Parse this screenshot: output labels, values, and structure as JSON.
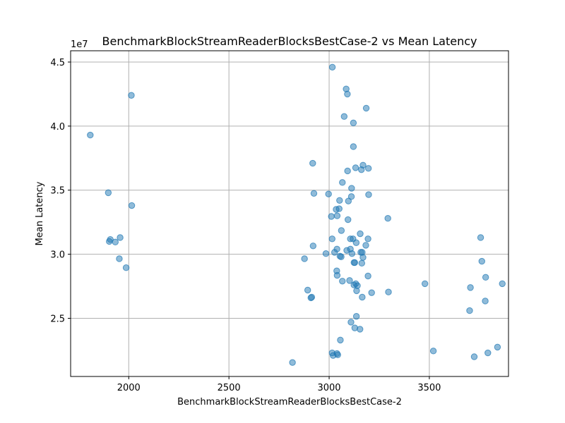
{
  "chart_data": {
    "type": "scatter",
    "title": "BenchmarkBlockStreamReaderBlocksBestCase-2 vs Mean Latency",
    "xlabel": "BenchmarkBlockStreamReaderBlocksBestCase-2",
    "ylabel": "Mean Latency",
    "y_scale_label": "1e7",
    "xlim": [
      1710,
      3895
    ],
    "ylim": [
      20460000,
      45880000
    ],
    "xticks": [
      2000,
      2500,
      3000,
      3500
    ],
    "xtick_labels": [
      "2000",
      "2500",
      "3000",
      "3500"
    ],
    "yticks": [
      25000000,
      30000000,
      35000000,
      40000000,
      45000000
    ],
    "ytick_labels": [
      "2.5",
      "3.0",
      "3.5",
      "4.0",
      "4.5"
    ],
    "grid": true,
    "color": "#1f77b4",
    "point_alpha": 0.5,
    "points": [
      [
        1808,
        39300000
      ],
      [
        2013,
        42400000
      ],
      [
        1898,
        34800000
      ],
      [
        2015,
        33800000
      ],
      [
        1903,
        31000000
      ],
      [
        1908,
        31150000
      ],
      [
        1933,
        30950000
      ],
      [
        1957,
        31300000
      ],
      [
        1953,
        29650000
      ],
      [
        1987,
        28950000
      ],
      [
        3016,
        44600000
      ],
      [
        3085,
        42900000
      ],
      [
        3091,
        42500000
      ],
      [
        3185,
        41400000
      ],
      [
        3075,
        40750000
      ],
      [
        3121,
        40250000
      ],
      [
        3121,
        38400000
      ],
      [
        2918,
        37100000
      ],
      [
        3169,
        36950000
      ],
      [
        3132,
        36750000
      ],
      [
        3196,
        36700000
      ],
      [
        3161,
        36600000
      ],
      [
        3092,
        36500000
      ],
      [
        3066,
        35600000
      ],
      [
        3112,
        35150000
      ],
      [
        2924,
        34750000
      ],
      [
        2997,
        34700000
      ],
      [
        3111,
        34500000
      ],
      [
        3197,
        34650000
      ],
      [
        3052,
        34200000
      ],
      [
        3096,
        34150000
      ],
      [
        3035,
        33500000
      ],
      [
        3050,
        33550000
      ],
      [
        3011,
        32950000
      ],
      [
        3040,
        33000000
      ],
      [
        3094,
        32700000
      ],
      [
        3293,
        32800000
      ],
      [
        3061,
        31850000
      ],
      [
        3155,
        31600000
      ],
      [
        3015,
        31200000
      ],
      [
        3106,
        31200000
      ],
      [
        3119,
        31200000
      ],
      [
        3194,
        31200000
      ],
      [
        3135,
        30900000
      ],
      [
        3183,
        30700000
      ],
      [
        2920,
        30650000
      ],
      [
        3039,
        30400000
      ],
      [
        3088,
        30300000
      ],
      [
        3106,
        30400000
      ],
      [
        3027,
        30150000
      ],
      [
        2984,
        30050000
      ],
      [
        3114,
        30050000
      ],
      [
        3158,
        30150000
      ],
      [
        3165,
        30150000
      ],
      [
        3054,
        29850000
      ],
      [
        3060,
        29800000
      ],
      [
        3169,
        29750000
      ],
      [
        2877,
        29650000
      ],
      [
        3124,
        29350000
      ],
      [
        3128,
        29350000
      ],
      [
        3163,
        29300000
      ],
      [
        3038,
        28700000
      ],
      [
        3040,
        28350000
      ],
      [
        3194,
        28300000
      ],
      [
        3066,
        27900000
      ],
      [
        3102,
        27950000
      ],
      [
        3133,
        27700000
      ],
      [
        3124,
        27600000
      ],
      [
        3141,
        27550000
      ],
      [
        2893,
        27200000
      ],
      [
        3137,
        27150000
      ],
      [
        3212,
        27000000
      ],
      [
        3296,
        27050000
      ],
      [
        3165,
        26650000
      ],
      [
        2909,
        26600000
      ],
      [
        2913,
        26650000
      ],
      [
        3136,
        25150000
      ],
      [
        3109,
        24700000
      ],
      [
        3128,
        24250000
      ],
      [
        3154,
        24150000
      ],
      [
        3056,
        23300000
      ],
      [
        2817,
        21550000
      ],
      [
        3015,
        22300000
      ],
      [
        3020,
        22100000
      ],
      [
        3039,
        22250000
      ],
      [
        3043,
        22150000
      ],
      [
        3478,
        27700000
      ],
      [
        3520,
        22450000
      ],
      [
        3756,
        31300000
      ],
      [
        3762,
        29450000
      ],
      [
        3781,
        28200000
      ],
      [
        3705,
        27400000
      ],
      [
        3864,
        27700000
      ],
      [
        3779,
        26350000
      ],
      [
        3701,
        25600000
      ],
      [
        3840,
        22750000
      ],
      [
        3792,
        22300000
      ],
      [
        3724,
        22000000
      ]
    ]
  }
}
